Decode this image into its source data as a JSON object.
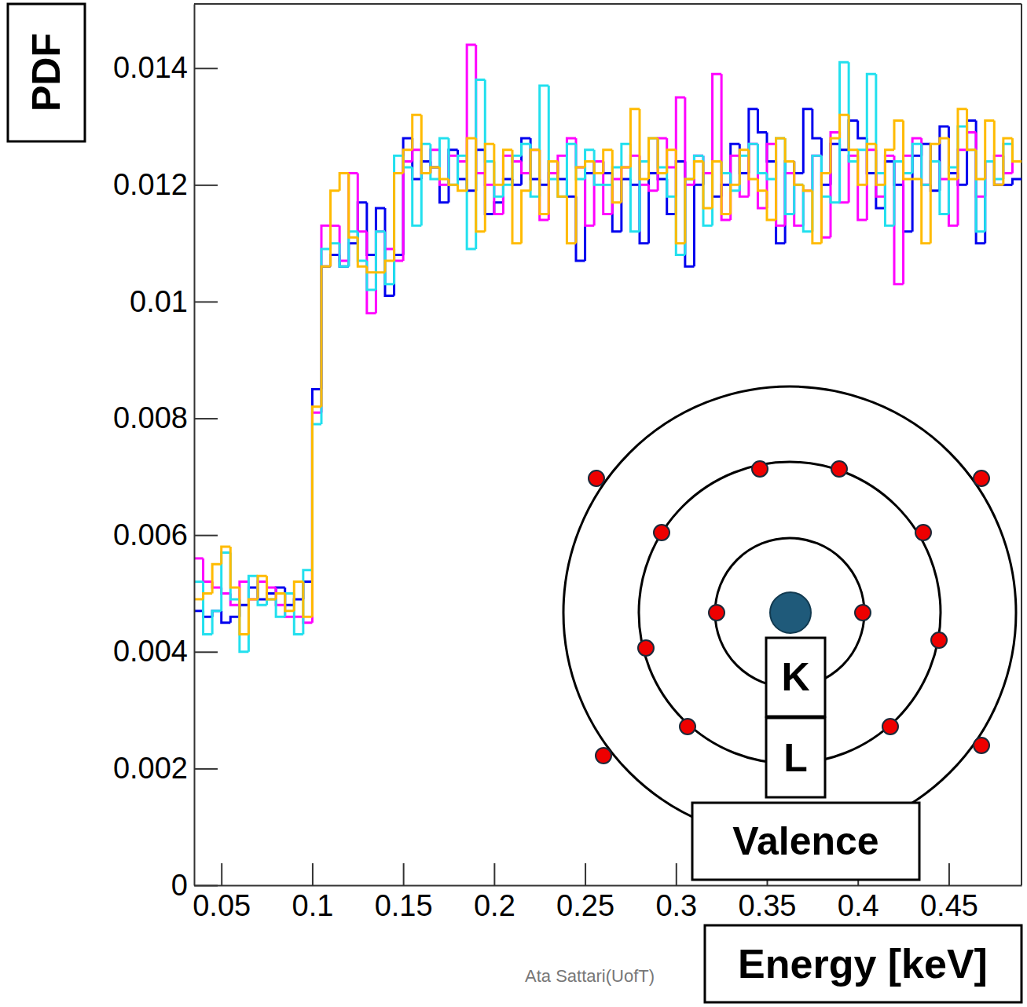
{
  "chart_data": {
    "type": "histogram",
    "xlabel": "Energy [keV]",
    "ylabel": "PDF",
    "annotations": [
      "K",
      "L",
      "Valence",
      "Ata Sattari(UofT)"
    ],
    "bins": [
      0.035,
      0.04,
      0.045,
      0.05,
      0.055,
      0.06,
      0.065,
      0.07,
      0.075,
      0.08,
      0.085,
      0.09,
      0.095,
      0.1,
      0.105,
      0.11,
      0.115,
      0.12,
      0.125,
      0.13,
      0.135,
      0.14,
      0.145,
      0.15,
      0.155,
      0.16,
      0.165,
      0.17,
      0.175,
      0.18,
      0.185,
      0.19,
      0.195,
      0.2,
      0.205,
      0.21,
      0.215,
      0.22,
      0.225,
      0.23,
      0.235,
      0.24,
      0.245,
      0.25,
      0.255,
      0.26,
      0.265,
      0.27,
      0.275,
      0.28,
      0.285,
      0.29,
      0.295,
      0.3,
      0.305,
      0.31,
      0.315,
      0.32,
      0.325,
      0.33,
      0.335,
      0.34,
      0.345,
      0.35,
      0.355,
      0.36,
      0.365,
      0.37,
      0.375,
      0.38,
      0.385,
      0.39,
      0.395,
      0.4,
      0.405,
      0.41,
      0.415,
      0.42,
      0.425,
      0.43,
      0.435,
      0.44,
      0.445,
      0.45,
      0.455,
      0.46,
      0.465,
      0.47,
      0.475,
      0.48,
      0.485,
      0.49
    ],
    "series": [
      {
        "color": "#0000ee",
        "values": [
          0.0047,
          0.0046,
          0.0047,
          0.0045,
          0.0046,
          0.0048,
          0.0051,
          0.0049,
          0.005,
          0.0051,
          0.0048,
          0.0049,
          0.0052,
          0.0085,
          0.0106,
          0.0108,
          0.0106,
          0.011,
          0.0117,
          0.0108,
          0.0116,
          0.0101,
          0.0108,
          0.0128,
          0.0121,
          0.0124,
          0.0123,
          0.0117,
          0.0126,
          0.0121,
          0.0119,
          0.0126,
          0.0115,
          0.0117,
          0.0121,
          0.012,
          0.0128,
          0.0121,
          0.012,
          0.0124,
          0.0121,
          0.0118,
          0.0107,
          0.0122,
          0.0124,
          0.0122,
          0.0112,
          0.0121,
          0.012,
          0.011,
          0.0122,
          0.0121,
          0.0115,
          0.0124,
          0.0106,
          0.012,
          0.0122,
          0.0118,
          0.012,
          0.0127,
          0.0122,
          0.0133,
          0.0129,
          0.0124,
          0.011,
          0.0124,
          0.0122,
          0.0133,
          0.0128,
          0.012,
          0.0127,
          0.0126,
          0.0131,
          0.0128,
          0.0122,
          0.0116,
          0.0124,
          0.012,
          0.0112,
          0.0125,
          0.0127,
          0.0119,
          0.013,
          0.0122,
          0.012,
          0.0131,
          0.011,
          0.0124,
          0.012,
          0.012,
          0.0121
        ]
      },
      {
        "color": "#ff00ff",
        "values": [
          0.0056,
          0.0052,
          0.0051,
          0.005,
          0.0048,
          0.0052,
          0.0049,
          0.0052,
          0.0051,
          0.0048,
          0.0046,
          0.0046,
          0.0045,
          0.0081,
          0.0113,
          0.0113,
          0.0107,
          0.0122,
          0.0112,
          0.0098,
          0.0112,
          0.0109,
          0.0107,
          0.0124,
          0.0126,
          0.0122,
          0.0126,
          0.012,
          0.0125,
          0.0124,
          0.0144,
          0.0122,
          0.012,
          0.0115,
          0.0125,
          0.0124,
          0.0122,
          0.0126,
          0.0114,
          0.0122,
          0.0125,
          0.0128,
          0.0123,
          0.0113,
          0.0124,
          0.0115,
          0.0121,
          0.0123,
          0.0125,
          0.012,
          0.0119,
          0.0128,
          0.0123,
          0.0135,
          0.012,
          0.0125,
          0.0122,
          0.0139,
          0.0114,
          0.0125,
          0.0118,
          0.0127,
          0.0116,
          0.0127,
          0.0113,
          0.0122,
          0.0113,
          0.0119,
          0.0125,
          0.0111,
          0.0129,
          0.0117,
          0.0125,
          0.0114,
          0.0126,
          0.0118,
          0.0125,
          0.0103,
          0.0125,
          0.0128,
          0.012,
          0.0124,
          0.0121,
          0.0113,
          0.0126,
          0.0129,
          0.0118,
          0.0124,
          0.0125,
          0.0122,
          0.0124
        ]
      },
      {
        "color": "#22e0ee",
        "values": [
          0.0052,
          0.0043,
          0.0047,
          0.0057,
          0.0049,
          0.004,
          0.0053,
          0.0048,
          0.0049,
          0.0046,
          0.005,
          0.0043,
          0.0054,
          0.0079,
          0.0109,
          0.011,
          0.0106,
          0.0112,
          0.0107,
          0.0102,
          0.0112,
          0.0103,
          0.0125,
          0.0123,
          0.0113,
          0.0127,
          0.0121,
          0.0128,
          0.012,
          0.0125,
          0.0109,
          0.0138,
          0.0124,
          0.0118,
          0.012,
          0.0125,
          0.0127,
          0.0118,
          0.0137,
          0.0121,
          0.0118,
          0.0127,
          0.0121,
          0.0126,
          0.012,
          0.012,
          0.0123,
          0.0127,
          0.0112,
          0.0124,
          0.0128,
          0.0123,
          0.0118,
          0.0108,
          0.0121,
          0.0125,
          0.0113,
          0.0124,
          0.0122,
          0.0119,
          0.0125,
          0.0127,
          0.0122,
          0.0121,
          0.0128,
          0.0115,
          0.012,
          0.0112,
          0.0125,
          0.0118,
          0.0117,
          0.0141,
          0.0124,
          0.0126,
          0.0139,
          0.0122,
          0.0113,
          0.0124,
          0.0122,
          0.0127,
          0.012,
          0.0124,
          0.0115,
          0.0123,
          0.013,
          0.0126,
          0.0112,
          0.0124,
          0.0121,
          0.0127,
          0.0124
        ]
      },
      {
        "color": "#ffbb00",
        "values": [
          0.0049,
          0.005,
          0.0055,
          0.0058,
          0.0051,
          0.0043,
          0.0049,
          0.0053,
          0.0049,
          0.005,
          0.0047,
          0.0052,
          0.0046,
          0.0082,
          0.0106,
          0.0119,
          0.0122,
          0.0111,
          0.0106,
          0.0105,
          0.0105,
          0.0107,
          0.0122,
          0.0126,
          0.0132,
          0.0122,
          0.0123,
          0.0121,
          0.012,
          0.0119,
          0.0128,
          0.0112,
          0.0127,
          0.012,
          0.0126,
          0.011,
          0.0119,
          0.0126,
          0.0115,
          0.0124,
          0.0118,
          0.011,
          0.0123,
          0.0124,
          0.0122,
          0.0126,
          0.0117,
          0.0123,
          0.0133,
          0.0121,
          0.0128,
          0.0122,
          0.0126,
          0.011,
          0.0121,
          0.0124,
          0.0116,
          0.0124,
          0.0115,
          0.012,
          0.0126,
          0.0121,
          0.0119,
          0.0114,
          0.0128,
          0.0124,
          0.012,
          0.0119,
          0.011,
          0.0122,
          0.0128,
          0.0132,
          0.0126,
          0.012,
          0.0127,
          0.012,
          0.0126,
          0.0131,
          0.0121,
          0.0121,
          0.011,
          0.0127,
          0.0128,
          0.0121,
          0.0133,
          0.0126,
          0.0121,
          0.0131,
          0.012,
          0.0128,
          0.0124
        ]
      }
    ],
    "xlim": [
      0.035,
      0.49
    ],
    "ylim": [
      0,
      0.0151
    ],
    "xticks": [
      0.05,
      0.1,
      0.15,
      0.2,
      0.25,
      0.3,
      0.35,
      0.4,
      0.45
    ],
    "yticks": [
      0,
      0.002,
      0.004,
      0.006,
      0.008,
      0.01,
      0.012,
      0.014
    ]
  }
}
